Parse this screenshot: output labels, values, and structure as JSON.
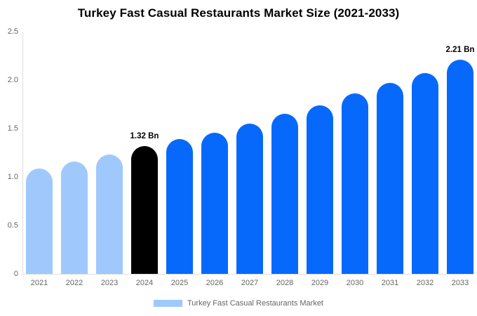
{
  "chart_data": {
    "type": "bar",
    "title": "Turkey Fast Casual Restaurants Market Size (2021-2033)",
    "xlabel": "",
    "ylabel": "",
    "unit": "Bn",
    "categories": [
      "2021",
      "2022",
      "2023",
      "2024",
      "2025",
      "2026",
      "2027",
      "2028",
      "2029",
      "2030",
      "2031",
      "2032",
      "2033"
    ],
    "values": [
      1.09,
      1.16,
      1.23,
      1.32,
      1.39,
      1.46,
      1.55,
      1.65,
      1.74,
      1.86,
      1.97,
      2.07,
      2.21
    ],
    "bar_color_keys": [
      "historical",
      "historical",
      "historical",
      "base_year",
      "forecast",
      "forecast",
      "forecast",
      "forecast",
      "forecast",
      "forecast",
      "forecast",
      "forecast",
      "forecast"
    ],
    "colors": {
      "historical": "#9FC9FC",
      "base_year": "#000000",
      "forecast": "#0769FC",
      "axis_line": "#dddddd",
      "tick_text": "#666666"
    },
    "ylim": [
      0,
      2.5
    ],
    "yticks": [
      {
        "label": "2.5",
        "value": 2.5
      },
      {
        "label": "2.0",
        "value": 2.0
      },
      {
        "label": "1.5",
        "value": 1.5
      },
      {
        "label": "1.0",
        "value": 1.0
      },
      {
        "label": "0.5",
        "value": 0.5
      },
      {
        "label": "0",
        "value": 0
      }
    ],
    "grid": false,
    "annotations": [
      {
        "category": "2024",
        "text": "1.32 Bn"
      },
      {
        "category": "2033",
        "text": "2.21 Bn"
      }
    ],
    "legend_position": "bottom",
    "legend": [
      {
        "label": "Turkey Fast Casual Restaurants Market",
        "color": "#9FC9FC"
      }
    ]
  }
}
